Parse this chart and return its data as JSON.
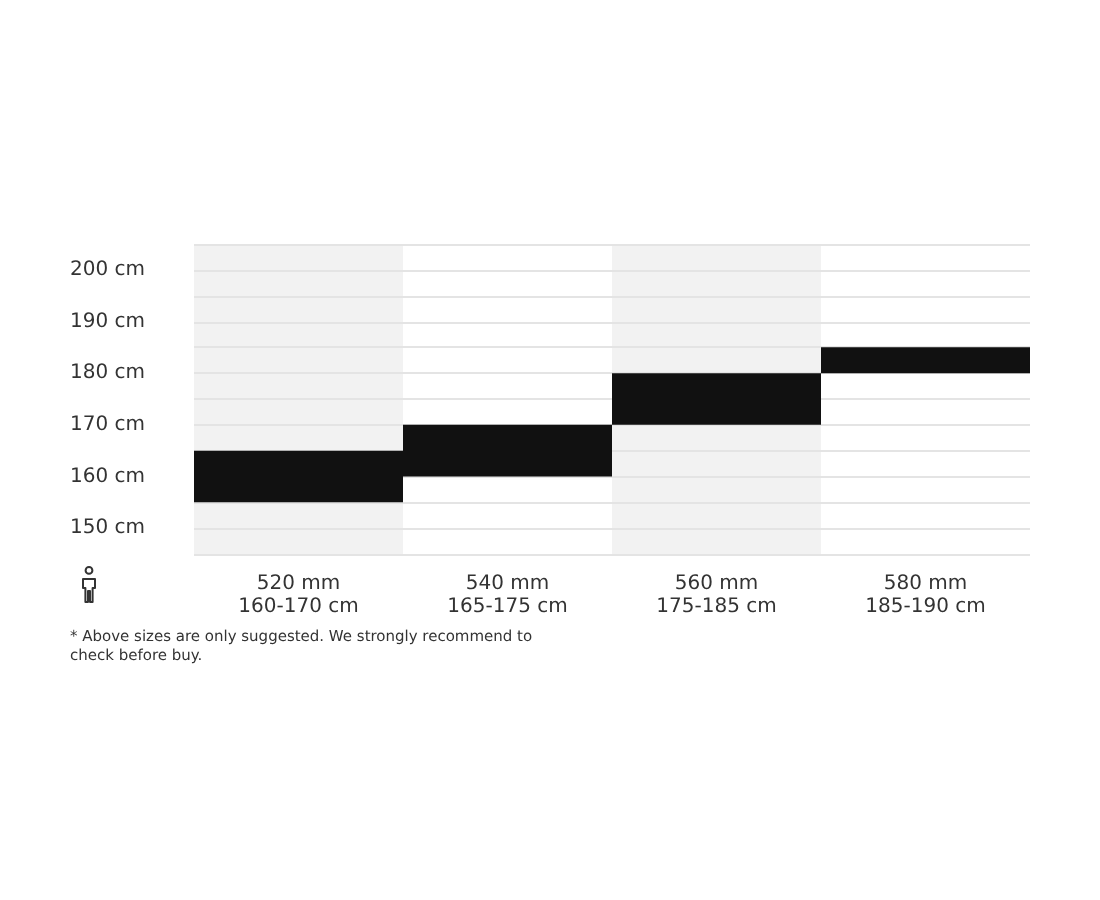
{
  "chart_data": {
    "type": "bar",
    "categories": [
      "520 mm\n160-170 cm",
      "540 mm\n165-175 cm",
      "560 mm\n175-185 cm",
      "580 mm\n185-190 cm"
    ],
    "values": [
      10,
      10,
      10,
      5
    ],
    "base": [
      155,
      160,
      170,
      180
    ],
    "color": "#111111",
    "ylim": [
      145,
      205
    ],
    "yticks": [
      {
        "value": 145,
        "label": null
      },
      {
        "value": 150,
        "label": "150 cm"
      },
      {
        "value": 155,
        "label": null
      },
      {
        "value": 160,
        "label": "160 cm"
      },
      {
        "value": 165,
        "label": null
      },
      {
        "value": 170,
        "label": "170 cm"
      },
      {
        "value": 175,
        "label": null
      },
      {
        "value": 180,
        "label": "180 cm"
      },
      {
        "value": 185,
        "label": null
      },
      {
        "value": 190,
        "label": "190 cm"
      },
      {
        "value": 195,
        "label": null
      },
      {
        "value": 200,
        "label": "200 cm"
      },
      {
        "value": 205,
        "label": null
      }
    ],
    "grid": "y",
    "bands": [
      {
        "axis": "x",
        "from": "520 mm\n160-170 cm",
        "to": "520 mm\n160-170 cm",
        "color": "#f2f2f2"
      },
      {
        "axis": "x",
        "from": "560 mm\n175-185 cm",
        "to": "560 mm\n175-185 cm",
        "color": "#f2f2f2"
      }
    ],
    "annotations": [
      "* Above sizes are only suggested. We strongly recommend to check before buy."
    ]
  }
}
